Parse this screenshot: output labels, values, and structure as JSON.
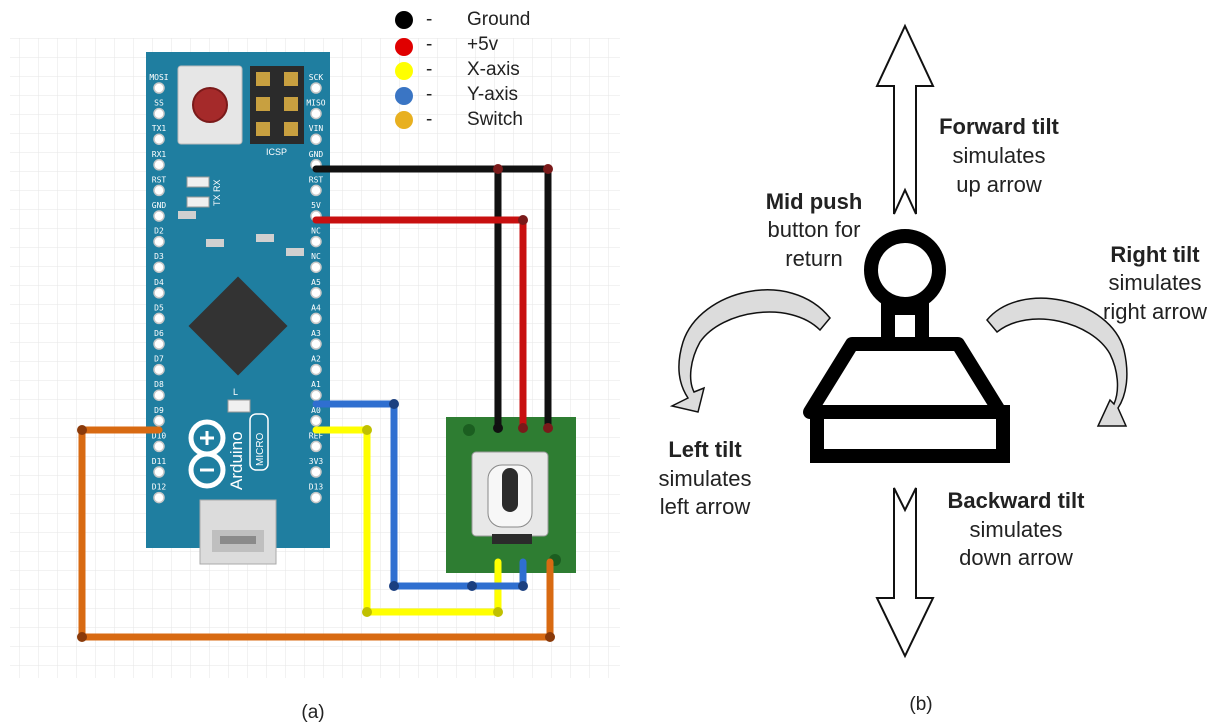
{
  "legend": [
    {
      "color": "#000000",
      "dash": "-",
      "label": "Ground"
    },
    {
      "color": "#e00000",
      "dash": "-",
      "label": "+5v"
    },
    {
      "color": "#ffff00",
      "dash": "-",
      "label": "X-axis"
    },
    {
      "color": "#3a75c4",
      "dash": "-",
      "label": "Y-axis"
    },
    {
      "color": "#e8b020",
      "dash": "-",
      "label": "Switch"
    }
  ],
  "board": {
    "name": "Arduino Micro",
    "logo_text": "Arduino",
    "micro_text": "MICRO",
    "icsp_label": "ICSP",
    "led_label": "L",
    "tx_rx_label": "TX RX",
    "left_pins": [
      "MOSI",
      "SS",
      "TX1",
      "RX1",
      "RST",
      "GND",
      "D2",
      "D3",
      "D4",
      "D5",
      "D6",
      "D7",
      "D8",
      "D9",
      "D10",
      "D11",
      "D12"
    ],
    "right_pins": [
      "SCK",
      "MISO",
      "VIN",
      "GND",
      "RST",
      "5V",
      "NC",
      "NC",
      "A5",
      "A4",
      "A3",
      "A2",
      "A1",
      "A0",
      "REF",
      "3V3",
      "D13"
    ]
  },
  "captions": {
    "left": "(a)",
    "right": "(b)"
  },
  "annotations": {
    "forward": {
      "bold": "Forward tilt",
      "line1": "simulates",
      "line2": "up arrow"
    },
    "mid": {
      "bold": "Mid push",
      "line1": "button for",
      "line2": "return"
    },
    "right": {
      "bold": "Right tilt",
      "line1": "simulates",
      "line2": "right arrow"
    },
    "left": {
      "bold": "Left tilt",
      "line1": "simulates",
      "line2": "left arrow"
    },
    "backward": {
      "bold": "Backward tilt",
      "line1": "simulates",
      "line2": "down arrow"
    }
  },
  "colors": {
    "board": "#1f7ea0",
    "module": "#2e7d32",
    "ground": "#111111",
    "vcc": "#c81010",
    "x_axis": "#ffff00",
    "y_axis": "#2f6fd0",
    "switch": "#d86a12"
  }
}
